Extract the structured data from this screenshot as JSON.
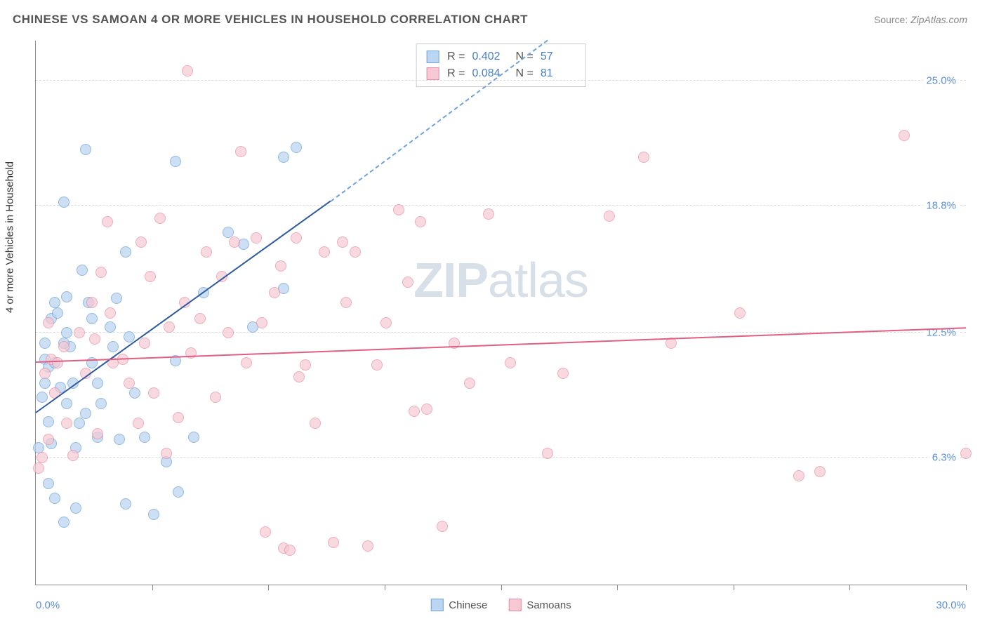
{
  "header": {
    "title": "CHINESE VS SAMOAN 4 OR MORE VEHICLES IN HOUSEHOLD CORRELATION CHART",
    "source_label": "Source:",
    "source_value": "ZipAtlas.com"
  },
  "watermark": {
    "text_bold": "ZIP",
    "text_rest": "atlas"
  },
  "chart": {
    "type": "scatter",
    "background_color": "#ffffff",
    "grid_color": "#dddddd",
    "axis_color": "#888888",
    "xlim": [
      0,
      30
    ],
    "ylim": [
      0,
      27
    ],
    "x_min_label": "0.0%",
    "x_max_label": "30.0%",
    "x_ticks": [
      3.75,
      7.5,
      11.25,
      15,
      18.75,
      22.5,
      26.25,
      30
    ],
    "y_gridlines": [
      {
        "value": 6.3,
        "label": "6.3%"
      },
      {
        "value": 12.5,
        "label": "12.5%"
      },
      {
        "value": 18.8,
        "label": "18.8%"
      },
      {
        "value": 25.0,
        "label": "25.0%"
      }
    ],
    "y_axis_title": "4 or more Vehicles in Household",
    "y_label_color": "#5b8fd6",
    "series": [
      {
        "name": "Chinese",
        "fill": "#bcd5f0",
        "stroke": "#6fa3dd",
        "marker_radius": 8,
        "marker_opacity": 0.75,
        "trend": {
          "x1": 0,
          "y1": 8.5,
          "x2": 9.5,
          "y2": 19.0,
          "color": "#2c5aa0"
        },
        "trend_dash": {
          "x1": 9.5,
          "y1": 19.0,
          "x2": 16.5,
          "y2": 27.0,
          "color": "#6fa3dd"
        },
        "points": [
          [
            0.3,
            11.2
          ],
          [
            0.3,
            10.0
          ],
          [
            0.2,
            9.3
          ],
          [
            0.4,
            10.8
          ],
          [
            0.5,
            13.2
          ],
          [
            0.6,
            14.0
          ],
          [
            0.9,
            19.0
          ],
          [
            1.6,
            21.6
          ],
          [
            1.0,
            12.5
          ],
          [
            1.1,
            11.8
          ],
          [
            0.8,
            9.8
          ],
          [
            0.4,
            8.1
          ],
          [
            0.1,
            6.8
          ],
          [
            0.4,
            5.0
          ],
          [
            0.6,
            4.3
          ],
          [
            1.3,
            3.8
          ],
          [
            0.9,
            3.1
          ],
          [
            1.3,
            6.8
          ],
          [
            1.6,
            8.5
          ],
          [
            1.8,
            13.2
          ],
          [
            1.5,
            15.6
          ],
          [
            2.0,
            7.3
          ],
          [
            2.5,
            11.8
          ],
          [
            2.7,
            7.2
          ],
          [
            2.1,
            9.0
          ],
          [
            2.6,
            14.2
          ],
          [
            3.0,
            12.3
          ],
          [
            3.2,
            9.5
          ],
          [
            3.5,
            7.3
          ],
          [
            2.9,
            4.0
          ],
          [
            3.8,
            3.5
          ],
          [
            4.2,
            6.1
          ],
          [
            2.9,
            16.5
          ],
          [
            4.5,
            21.0
          ],
          [
            4.5,
            11.1
          ],
          [
            5.1,
            7.3
          ],
          [
            4.6,
            4.6
          ],
          [
            5.4,
            14.5
          ],
          [
            6.2,
            17.5
          ],
          [
            7.0,
            12.8
          ],
          [
            6.7,
            16.9
          ],
          [
            8.0,
            21.2
          ],
          [
            8.4,
            21.7
          ],
          [
            8.0,
            14.7
          ],
          [
            0.6,
            11.0
          ],
          [
            1.2,
            10.0
          ],
          [
            0.9,
            12.0
          ],
          [
            0.3,
            12.0
          ],
          [
            0.7,
            13.5
          ],
          [
            1.0,
            9.0
          ],
          [
            0.5,
            7.0
          ],
          [
            1.8,
            11.0
          ],
          [
            1.0,
            14.3
          ],
          [
            2.4,
            12.8
          ],
          [
            1.7,
            14.0
          ],
          [
            2.0,
            10.0
          ],
          [
            1.4,
            8.0
          ]
        ]
      },
      {
        "name": "Samoans",
        "fill": "#f6c9d4",
        "stroke": "#e88aa3",
        "marker_radius": 8,
        "marker_opacity": 0.7,
        "trend": {
          "x1": 0,
          "y1": 11.0,
          "x2": 30,
          "y2": 12.7,
          "color": "#e05f82"
        },
        "points": [
          [
            0.1,
            5.8
          ],
          [
            0.2,
            6.3
          ],
          [
            0.4,
            7.2
          ],
          [
            0.3,
            10.5
          ],
          [
            0.5,
            11.2
          ],
          [
            0.7,
            11.0
          ],
          [
            0.9,
            11.8
          ],
          [
            0.4,
            13.0
          ],
          [
            1.2,
            6.4
          ],
          [
            1.6,
            10.5
          ],
          [
            1.9,
            12.2
          ],
          [
            2.1,
            15.5
          ],
          [
            2.5,
            11.0
          ],
          [
            2.3,
            18.0
          ],
          [
            3.0,
            10.0
          ],
          [
            3.3,
            8.0
          ],
          [
            3.7,
            15.3
          ],
          [
            3.4,
            17.0
          ],
          [
            4.0,
            18.2
          ],
          [
            4.2,
            6.5
          ],
          [
            4.6,
            8.3
          ],
          [
            4.9,
            25.5
          ],
          [
            5.0,
            11.5
          ],
          [
            5.3,
            13.2
          ],
          [
            5.8,
            9.3
          ],
          [
            6.0,
            15.3
          ],
          [
            6.4,
            17.0
          ],
          [
            6.6,
            21.5
          ],
          [
            7.1,
            17.2
          ],
          [
            7.4,
            2.6
          ],
          [
            7.7,
            14.5
          ],
          [
            8.0,
            1.8
          ],
          [
            8.2,
            1.7
          ],
          [
            8.5,
            10.3
          ],
          [
            8.7,
            10.9
          ],
          [
            9.0,
            8.0
          ],
          [
            9.6,
            2.1
          ],
          [
            9.9,
            17.0
          ],
          [
            10.3,
            16.5
          ],
          [
            10.7,
            1.9
          ],
          [
            11.0,
            10.9
          ],
          [
            11.7,
            18.6
          ],
          [
            12.2,
            8.6
          ],
          [
            12.4,
            18.0
          ],
          [
            12.6,
            8.7
          ],
          [
            13.1,
            2.9
          ],
          [
            14.6,
            18.4
          ],
          [
            15.3,
            11.0
          ],
          [
            16.5,
            6.5
          ],
          [
            18.5,
            18.3
          ],
          [
            19.6,
            21.2
          ],
          [
            22.7,
            13.5
          ],
          [
            24.6,
            5.4
          ],
          [
            25.3,
            5.6
          ],
          [
            30.0,
            6.5
          ],
          [
            28.0,
            22.3
          ],
          [
            0.6,
            9.5
          ],
          [
            1.0,
            8.0
          ],
          [
            1.4,
            12.5
          ],
          [
            1.8,
            14.0
          ],
          [
            2.0,
            7.5
          ],
          [
            2.4,
            13.5
          ],
          [
            2.8,
            11.2
          ],
          [
            3.5,
            12.0
          ],
          [
            3.8,
            9.5
          ],
          [
            4.3,
            12.8
          ],
          [
            4.8,
            14.0
          ],
          [
            5.5,
            16.5
          ],
          [
            6.2,
            12.5
          ],
          [
            6.8,
            11.0
          ],
          [
            7.3,
            13.0
          ],
          [
            7.9,
            15.8
          ],
          [
            8.4,
            17.2
          ],
          [
            9.3,
            16.5
          ],
          [
            10.0,
            14.0
          ],
          [
            11.3,
            13.0
          ],
          [
            12.0,
            15.0
          ],
          [
            13.5,
            12.0
          ],
          [
            14.0,
            10.0
          ],
          [
            17.0,
            10.5
          ],
          [
            20.5,
            12.0
          ]
        ]
      }
    ],
    "stats": [
      {
        "swatch_fill": "#bcd5f0",
        "swatch_stroke": "#6fa3dd",
        "r_label": "R =",
        "r_value": "0.402",
        "n_label": "N =",
        "n_value": "57"
      },
      {
        "swatch_fill": "#f6c9d4",
        "swatch_stroke": "#e88aa3",
        "r_label": "R =",
        "r_value": "0.084",
        "n_label": "N =",
        "n_value": "81"
      }
    ],
    "legend": [
      {
        "swatch_fill": "#bcd5f0",
        "swatch_stroke": "#6fa3dd",
        "label": "Chinese"
      },
      {
        "swatch_fill": "#f6c9d4",
        "swatch_stroke": "#e88aa3",
        "label": "Samoans"
      }
    ]
  }
}
